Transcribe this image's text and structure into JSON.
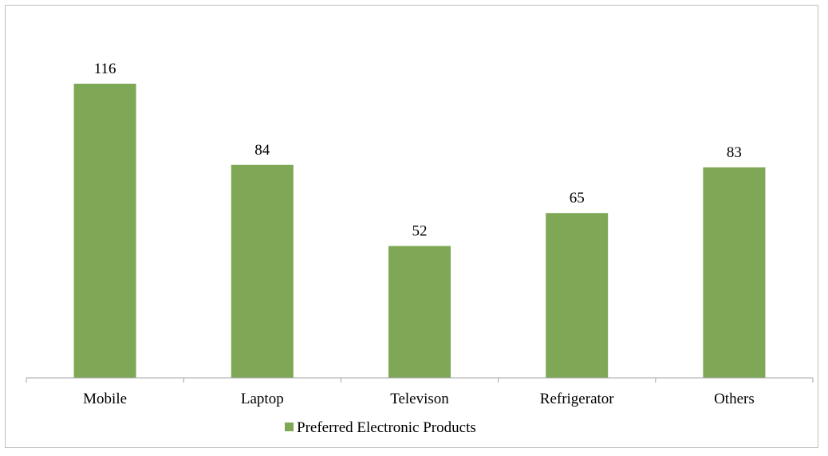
{
  "chart_data": {
    "type": "bar",
    "categories": [
      "Mobile",
      "Laptop",
      "Televison",
      "Refrigerator",
      "Others"
    ],
    "series": [
      {
        "name": "Preferred Electronic Products",
        "values": [
          116,
          84,
          52,
          65,
          83
        ],
        "color": "#7ea855"
      }
    ],
    "data_labels": [
      "116",
      "84",
      "52",
      "65",
      "83"
    ],
    "ylim": [
      0,
      116
    ],
    "grid": false,
    "legend_position": "bottom",
    "axis_color": "#a6a6a6"
  }
}
